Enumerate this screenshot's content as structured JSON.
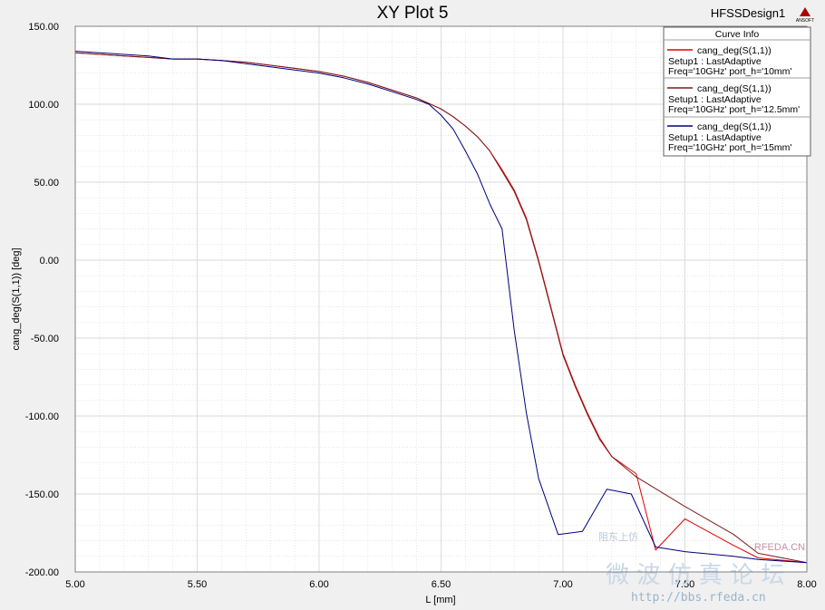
{
  "window": {
    "design_name": "HFSSDesign1",
    "logo_text": "ANSOFT"
  },
  "watermark": {
    "site": "RFEDA.CN",
    "chinese": "微 波 仿 真 论 坛",
    "url": "http://bbs.rfeda.cn",
    "small": "阻东上仿"
  },
  "chart_data": {
    "type": "line",
    "title": "XY Plot 5",
    "xlabel": "L [mm]",
    "ylabel": "cang_deg(S(1,1)) [deg]",
    "xlim": [
      5.0,
      8.0
    ],
    "ylim": [
      -200,
      150
    ],
    "xticks": [
      "5.00",
      "5.50",
      "6.00",
      "6.50",
      "7.00",
      "7.50",
      "8.00"
    ],
    "yticks": [
      "150.00",
      "100.00",
      "50.00",
      "0.00",
      "-50.00",
      "-100.00",
      "-150.00",
      "-200.00"
    ],
    "grid": true,
    "legend_title": "Curve Info",
    "legend_position": "top-right",
    "colors": {
      "series1": "#e00000",
      "series2": "#7a1a1a",
      "series3": "#00007a",
      "grid": "#d8d8d8",
      "plot_bg": "#ffffff"
    },
    "series": [
      {
        "name": "cang_deg(S(1,1))",
        "setup": "Setup1 : LastAdaptive",
        "variables": "Freq='10GHz' port_h='10mm'",
        "x": [
          5.0,
          5.1,
          5.2,
          5.3,
          5.4,
          5.5,
          5.6,
          5.7,
          5.8,
          5.9,
          6.0,
          6.1,
          6.2,
          6.3,
          6.4,
          6.5,
          6.55,
          6.6,
          6.65,
          6.7,
          6.75,
          6.8,
          6.85,
          6.9,
          6.95,
          7.0,
          7.05,
          7.1,
          7.15,
          7.2,
          7.3,
          7.38,
          7.5,
          7.7,
          7.8,
          8.0
        ],
        "y": [
          133,
          132,
          131,
          130,
          129,
          129,
          128,
          127,
          125,
          123,
          121,
          118,
          114,
          109,
          104,
          97,
          92,
          86,
          79,
          70,
          58,
          45,
          27,
          0,
          -30,
          -60,
          -80,
          -98,
          -114,
          -126,
          -137,
          -186,
          -166,
          -183,
          -191,
          -194
        ]
      },
      {
        "name": "cang_deg(S(1,1))",
        "setup": "Setup1 : LastAdaptive",
        "variables": "Freq='10GHz' port_h='12.5mm'",
        "x": [
          5.0,
          5.1,
          5.2,
          5.3,
          5.4,
          5.5,
          5.6,
          5.7,
          5.8,
          5.9,
          6.0,
          6.1,
          6.2,
          6.3,
          6.4,
          6.5,
          6.55,
          6.6,
          6.65,
          6.7,
          6.75,
          6.8,
          6.85,
          6.9,
          6.95,
          7.0,
          7.05,
          7.1,
          7.15,
          7.2,
          7.3,
          7.5,
          7.7,
          7.8,
          8.0
        ],
        "y": [
          133,
          132,
          131,
          130,
          129,
          129,
          128,
          127,
          125,
          123,
          121,
          118,
          114,
          109,
          104,
          97,
          92,
          86,
          79,
          70,
          57,
          44,
          26,
          -1,
          -31,
          -61,
          -81,
          -99,
          -115,
          -126,
          -139,
          -158,
          -176,
          -188,
          -194
        ]
      },
      {
        "name": "cang_deg(S(1,1))",
        "setup": "Setup1 : LastAdaptive",
        "variables": "Freq='10GHz' port_h='15mm'",
        "x": [
          5.0,
          5.1,
          5.2,
          5.3,
          5.4,
          5.5,
          5.6,
          5.7,
          5.8,
          5.9,
          6.0,
          6.1,
          6.2,
          6.3,
          6.4,
          6.45,
          6.5,
          6.55,
          6.6,
          6.65,
          6.7,
          6.75,
          6.8,
          6.85,
          6.9,
          6.98,
          7.08,
          7.18,
          7.28,
          7.38,
          7.5,
          7.7,
          7.8,
          8.0
        ],
        "y": [
          134,
          133,
          132,
          131,
          129,
          129,
          128,
          126,
          124,
          122,
          120,
          117,
          113,
          108,
          103,
          100,
          93,
          84,
          70,
          55,
          36,
          20,
          -45,
          -98,
          -140,
          -176,
          -174,
          -147,
          -150,
          -184,
          -187,
          -190,
          -192,
          -194
        ]
      }
    ]
  }
}
